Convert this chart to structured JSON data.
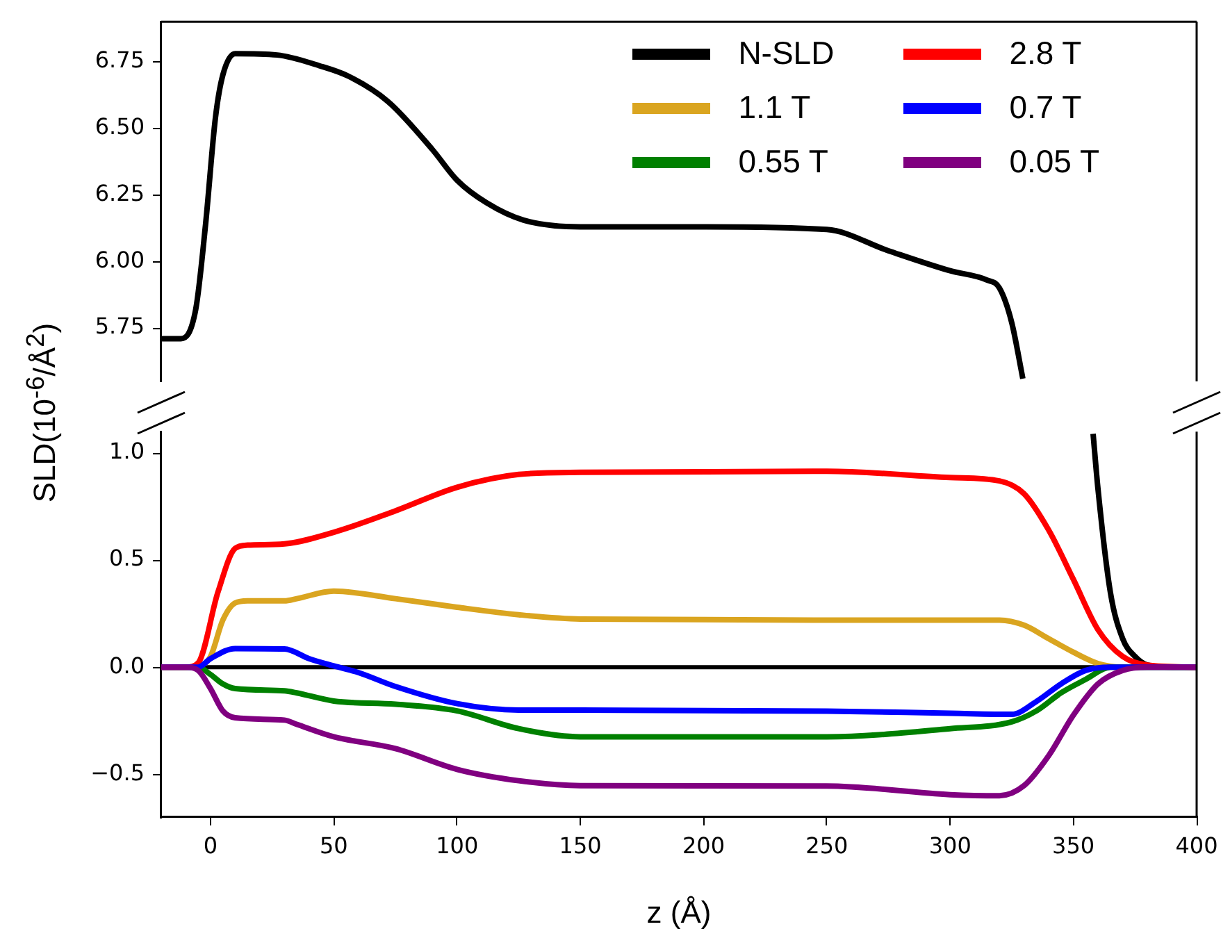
{
  "chart_data": [
    {
      "type": "line",
      "ylabel": "SLD(10$^{-6}$/Å$^{2}$)",
      "xlim": [
        -20,
        400
      ],
      "ylim": [
        5.55,
        6.9
      ],
      "yticks": [
        5.75,
        {
          "value": 6,
          "label": "6.00"
        },
        6.25,
        {
          "value": 6.5,
          "label": "6.50"
        },
        6.75
      ],
      "tick_labels": "y",
      "legend": "top right",
      "series": [
        {
          "name": "N-SLD",
          "color": "#000000",
          "x": [
            -20,
            -12,
            -6,
            -2,
            2,
            5,
            10,
            27,
            44,
            56,
            72,
            90,
            100,
            112,
            127,
            150,
            200,
            250,
            275,
            300,
            315,
            320,
            325,
            329.5
          ],
          "values": [
            5.71,
            5.71,
            5.82,
            6.14,
            6.54,
            6.7,
            6.78,
            6.775,
            6.735,
            6.695,
            6.6,
            6.42,
            6.305,
            6.22,
            6.155,
            6.13,
            6.13,
            6.12,
            6.04,
            5.965,
            5.93,
            5.9,
            5.77,
            5.56
          ]
        }
      ]
    },
    {
      "type": "line",
      "xlabel": "z (Å)",
      "xlim": [
        -20,
        400
      ],
      "xticks": [
        0,
        50,
        100,
        150,
        200,
        250,
        300,
        350,
        400
      ],
      "ylim": [
        -0.7,
        1.1
      ],
      "yticks": [
        {
          "value": -0.5,
          "label": "−0.5"
        },
        {
          "value": 0,
          "label": "0.0"
        },
        {
          "value": 0.5,
          "label": "0.5"
        },
        {
          "value": 1,
          "label": "1.0"
        }
      ],
      "ref_lines": [
        {
          "axis": "y",
          "value": 0,
          "color": "#000000"
        }
      ],
      "legend": "top right",
      "series": [
        {
          "color": "#000000",
          "x": [
            358,
            360,
            365,
            370,
            375,
            380,
            390,
            400
          ],
          "values": [
            1.09,
            0.83,
            0.35,
            0.133,
            0.05,
            0.01,
            0,
            0
          ]
        },
        {
          "name": "1.1 T",
          "color": "#daa520",
          "x": [
            -20,
            -10,
            -5,
            0,
            5,
            10,
            15,
            30,
            35,
            50,
            75,
            100,
            125,
            150,
            250,
            320,
            330,
            340,
            350,
            360,
            370,
            400
          ],
          "values": [
            0,
            0,
            0.005,
            0.05,
            0.22,
            0.3,
            0.31,
            0.31,
            0.32,
            0.355,
            0.32,
            0.28,
            0.245,
            0.225,
            0.22,
            0.22,
            0.196,
            0.133,
            0.07,
            0.017,
            0,
            0
          ]
        },
        {
          "name": "0.55 T",
          "color": "#008000",
          "x": [
            -20,
            -5,
            0,
            5,
            10,
            30,
            35,
            50,
            75,
            100,
            125,
            150,
            250,
            300,
            325,
            335,
            345,
            355,
            365,
            400
          ],
          "values": [
            0,
            0,
            -0.034,
            -0.078,
            -0.1,
            -0.11,
            -0.12,
            -0.158,
            -0.173,
            -0.204,
            -0.287,
            -0.325,
            -0.325,
            -0.287,
            -0.255,
            -0.204,
            -0.12,
            -0.057,
            0,
            0
          ]
        },
        {
          "name": "2.8 T",
          "color": "#ff0000",
          "x": [
            -20,
            -10,
            -5,
            3,
            10,
            15,
            30,
            50,
            75,
            100,
            125,
            150,
            250,
            300,
            320,
            330,
            340,
            350,
            360,
            370,
            380,
            400
          ],
          "values": [
            0,
            0,
            0.02,
            0.35,
            0.555,
            0.57,
            0.576,
            0.63,
            0.73,
            0.84,
            0.9,
            0.91,
            0.915,
            0.886,
            0.87,
            0.81,
            0.64,
            0.41,
            0.175,
            0.05,
            0.01,
            0
          ]
        },
        {
          "name": "0.7 T",
          "color": "#0000ff",
          "x": [
            -20,
            -5,
            0,
            10,
            30,
            40,
            50,
            60,
            75,
            100,
            125,
            150,
            250,
            300,
            325,
            335,
            345,
            355,
            365,
            400
          ],
          "values": [
            0,
            0,
            0.04,
            0.087,
            0.085,
            0.04,
            0.006,
            -0.025,
            -0.09,
            -0.17,
            -0.2,
            -0.2,
            -0.205,
            -0.215,
            -0.22,
            -0.16,
            -0.078,
            -0.015,
            0,
            0
          ]
        },
        {
          "name": "0.05 T",
          "color": "#800080",
          "x": [
            -20,
            -10,
            -5,
            0,
            5,
            10,
            30,
            35,
            50,
            75,
            100,
            125,
            150,
            250,
            300,
            320,
            330,
            340,
            350,
            360,
            370,
            380,
            400
          ],
          "values": [
            0,
            0,
            -0.015,
            -0.1,
            -0.204,
            -0.236,
            -0.247,
            -0.267,
            -0.325,
            -0.38,
            -0.477,
            -0.53,
            -0.553,
            -0.555,
            -0.595,
            -0.6,
            -0.553,
            -0.413,
            -0.224,
            -0.078,
            -0.015,
            0,
            0
          ]
        }
      ]
    }
  ]
}
